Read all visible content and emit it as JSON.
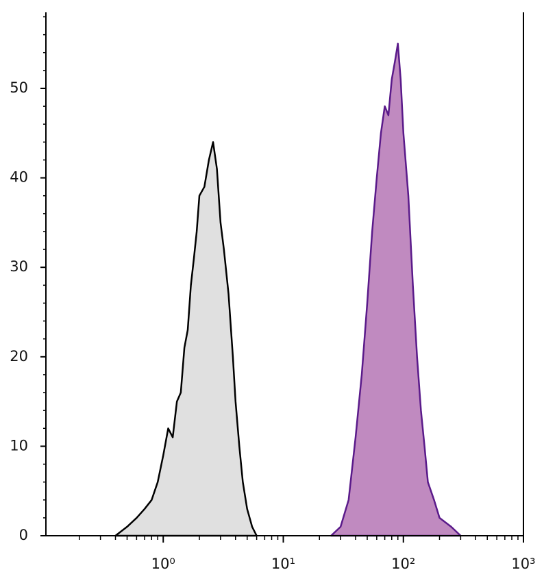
{
  "chart_data": {
    "type": "histogram-overlay",
    "xscale": "log",
    "xlim": [
      0.1,
      1000
    ],
    "ylim": [
      0,
      58.5
    ],
    "xticks": [
      {
        "value": 1,
        "label": "10⁰"
      },
      {
        "value": 10,
        "label": "10¹"
      },
      {
        "value": 100,
        "label": "10²"
      },
      {
        "value": 1000,
        "label": "10³"
      }
    ],
    "yticks": [
      0,
      10,
      20,
      30,
      40,
      50
    ],
    "series": [
      {
        "color": "#000000",
        "fill": "#e0e0e0",
        "x": [
          0.4,
          0.5,
          0.6,
          0.7,
          0.8,
          0.9,
          1.0,
          1.1,
          1.2,
          1.3,
          1.4,
          1.5,
          1.6,
          1.7,
          1.8,
          1.9,
          2.0,
          2.2,
          2.4,
          2.6,
          2.8,
          3.0,
          3.2,
          3.5,
          3.8,
          4.0,
          4.3,
          4.6,
          5.0,
          5.5,
          6.0
        ],
        "values": [
          0,
          1,
          2,
          3,
          4,
          6,
          9,
          12,
          11,
          15,
          16,
          21,
          23,
          28,
          31,
          34,
          38,
          39,
          42,
          44,
          41,
          35,
          32,
          27,
          20,
          15,
          10,
          6,
          3,
          1,
          0
        ]
      },
      {
        "color": "#5a1a8a",
        "fill": "#c08ac0",
        "x": [
          25,
          30,
          35,
          40,
          45,
          50,
          55,
          60,
          65,
          70,
          75,
          80,
          85,
          90,
          95,
          100,
          110,
          120,
          130,
          140,
          150,
          160,
          180,
          200,
          250,
          300
        ],
        "values": [
          0,
          1,
          4,
          11,
          18,
          26,
          34,
          40,
          45,
          48,
          47,
          51,
          53,
          55,
          51,
          45,
          38,
          28,
          20,
          14,
          10,
          6,
          4,
          2,
          1,
          0
        ]
      }
    ]
  }
}
